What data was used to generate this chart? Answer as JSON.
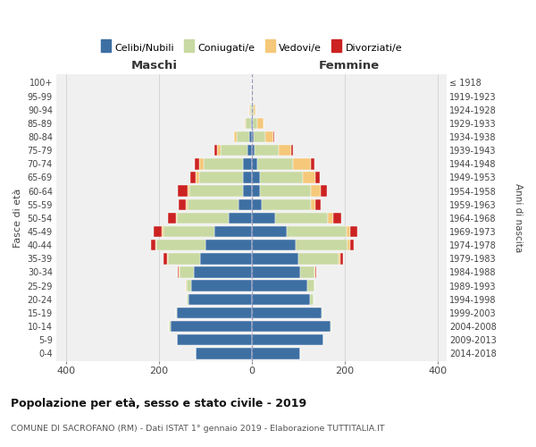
{
  "age_groups": [
    "0-4",
    "5-9",
    "10-14",
    "15-19",
    "20-24",
    "25-29",
    "30-34",
    "35-39",
    "40-44",
    "45-49",
    "50-54",
    "55-59",
    "60-64",
    "65-69",
    "70-74",
    "75-79",
    "80-84",
    "85-89",
    "90-94",
    "95-99",
    "100+"
  ],
  "birth_years": [
    "2014-2018",
    "2009-2013",
    "2004-2008",
    "1999-2003",
    "1994-1998",
    "1989-1993",
    "1984-1988",
    "1979-1983",
    "1974-1978",
    "1969-1973",
    "1964-1968",
    "1959-1963",
    "1954-1958",
    "1949-1953",
    "1944-1948",
    "1939-1943",
    "1934-1938",
    "1929-1933",
    "1924-1928",
    "1919-1923",
    "≤ 1918"
  ],
  "maschi": {
    "celibi": [
      120,
      160,
      175,
      160,
      135,
      130,
      125,
      110,
      100,
      80,
      50,
      28,
      18,
      18,
      18,
      8,
      4,
      2,
      0,
      0,
      0
    ],
    "coniugati": [
      0,
      0,
      2,
      2,
      5,
      10,
      30,
      70,
      105,
      110,
      110,
      110,
      115,
      95,
      85,
      58,
      28,
      10,
      3,
      1,
      0
    ],
    "vedovi": [
      0,
      0,
      0,
      0,
      0,
      2,
      2,
      2,
      2,
      3,
      2,
      3,
      5,
      8,
      10,
      8,
      5,
      3,
      1,
      0,
      0
    ],
    "divorziati": [
      0,
      0,
      0,
      0,
      0,
      0,
      2,
      8,
      10,
      18,
      18,
      15,
      20,
      10,
      10,
      5,
      0,
      0,
      0,
      0,
      0
    ]
  },
  "femmine": {
    "nubili": [
      105,
      155,
      170,
      150,
      125,
      120,
      105,
      100,
      95,
      75,
      50,
      22,
      18,
      18,
      12,
      6,
      4,
      2,
      0,
      0,
      0
    ],
    "coniugate": [
      0,
      0,
      2,
      3,
      8,
      15,
      30,
      88,
      112,
      130,
      115,
      105,
      110,
      92,
      78,
      52,
      25,
      10,
      4,
      1,
      0
    ],
    "vedove": [
      0,
      0,
      0,
      0,
      0,
      0,
      2,
      3,
      5,
      8,
      10,
      10,
      20,
      28,
      38,
      28,
      18,
      14,
      5,
      1,
      0
    ],
    "divorziate": [
      0,
      0,
      0,
      0,
      0,
      0,
      2,
      5,
      8,
      15,
      18,
      12,
      15,
      8,
      8,
      3,
      2,
      0,
      0,
      0,
      0
    ]
  },
  "colors": {
    "celibi": "#3d6fa3",
    "coniugati": "#c8d9a2",
    "vedovi": "#f5c87a",
    "divorziati": "#cc2222"
  },
  "title": "Popolazione per età, sesso e stato civile - 2019",
  "subtitle": "COMUNE DI SACROFANO (RM) - Dati ISTAT 1° gennaio 2019 - Elaborazione TUTTITALIA.IT",
  "xlabel_left": "Maschi",
  "xlabel_right": "Femmine",
  "ylabel_left": "Fasce di età",
  "ylabel_right": "Anni di nascita",
  "xlim": 420,
  "legend_labels": [
    "Celibi/Nubili",
    "Coniugati/e",
    "Vedovi/e",
    "Divorziati/e"
  ],
  "background_color": "#ffffff",
  "grid_color": "#cccccc"
}
